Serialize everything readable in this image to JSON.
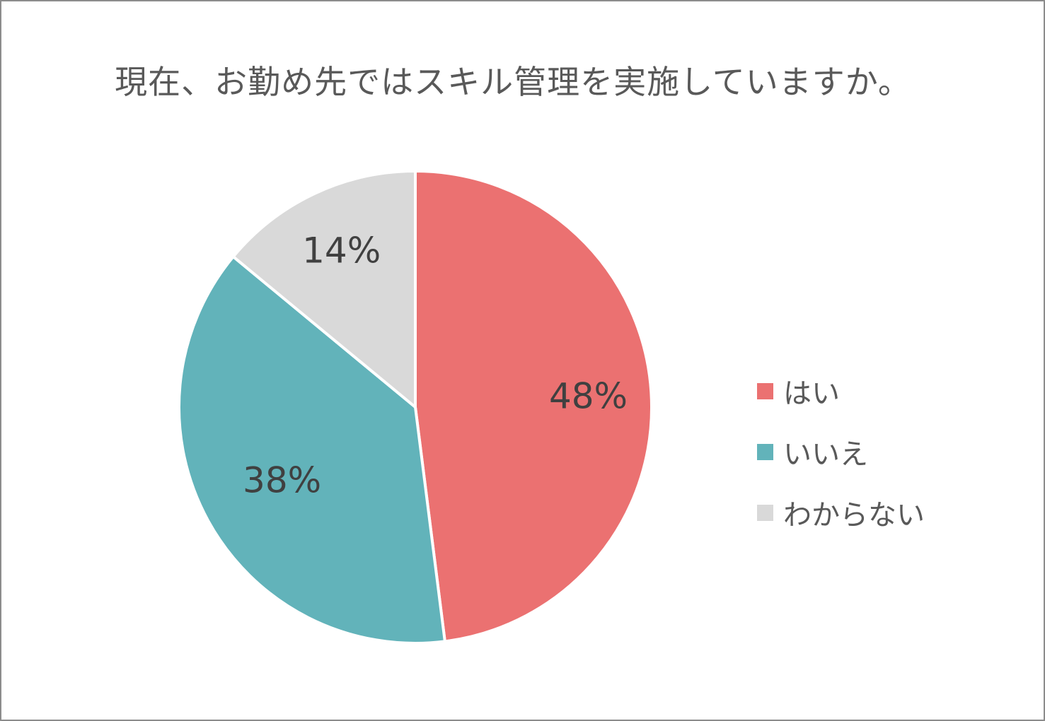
{
  "chart_data": {
    "type": "pie",
    "title": "現在、お勤め先ではスキル管理を実施していますか。",
    "slices": [
      {
        "name": "はい",
        "value": 48,
        "label": "48%",
        "color": "#EB7171"
      },
      {
        "name": "いいえ",
        "value": 38,
        "label": "38%",
        "color": "#62B3BA"
      },
      {
        "name": "わからない",
        "value": 14,
        "label": "14%",
        "color": "#D9D9D9"
      }
    ],
    "legend_position": "right",
    "start_angle": "top, clockwise"
  }
}
